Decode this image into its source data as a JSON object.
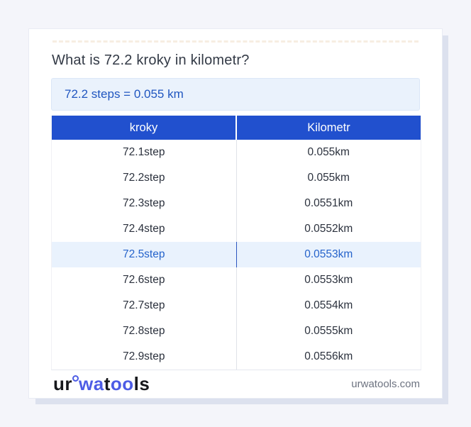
{
  "title": "What is 72.2 kroky in kilometr?",
  "answer": {
    "text": "72.2 steps = 0.055 km"
  },
  "table": {
    "headers": [
      "kroky",
      "Kilometr"
    ],
    "header_bg": "#2150ce",
    "highlight_bg": "#e9f2fd",
    "highlight_color": "#2563cb",
    "rows": [
      {
        "kroky": "72.1step",
        "km": "0.055km"
      },
      {
        "kroky": "72.2step",
        "km": "0.055km"
      },
      {
        "kroky": "72.3step",
        "km": "0.0551km"
      },
      {
        "kroky": "72.4step",
        "km": "0.0552km"
      },
      {
        "kroky": "72.5step",
        "km": "0.0553km",
        "highlighted": true
      },
      {
        "kroky": "72.6step",
        "km": "0.0553km"
      },
      {
        "kroky": "72.7step",
        "km": "0.0554km"
      },
      {
        "kroky": "72.8step",
        "km": "0.0555km"
      },
      {
        "kroky": "72.9step",
        "km": "0.0556km"
      }
    ]
  },
  "footer": {
    "logo": {
      "part1": "ur",
      "part2": "wa",
      "part3": "t",
      "part4": "oo",
      "part5": "ls"
    },
    "site": "urwatools.com"
  },
  "colors": {
    "page_bg": "#f4f5fa",
    "answer_bg": "#eaf2fc",
    "answer_text": "#2056c0",
    "brand_blue": "#4d5ce5"
  }
}
